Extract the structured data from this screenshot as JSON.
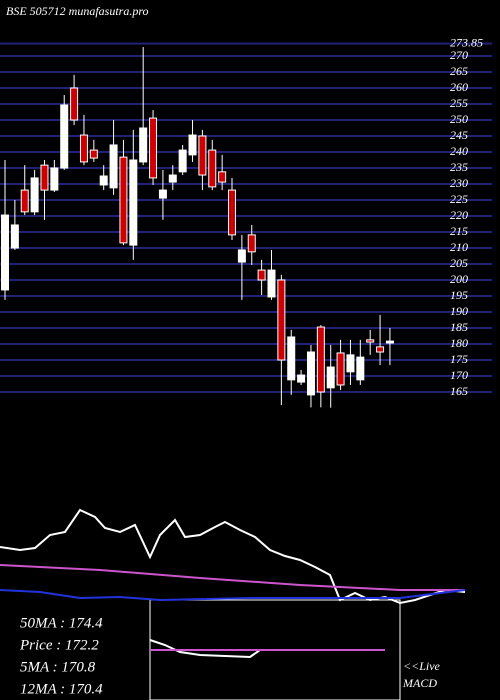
{
  "chart_data": [
    {
      "type": "candlestick",
      "title": "BSE 505712 munafasutra.pro",
      "up_color": "#ffffff",
      "down_color": "#cc0000",
      "grid": true,
      "grid_color": "#22227a",
      "ylim": [
        160,
        275
      ],
      "yticks": [
        165,
        170,
        175,
        180,
        185,
        190,
        195,
        200,
        205,
        210,
        215,
        220,
        225,
        230,
        235,
        240,
        245,
        250,
        255,
        260,
        265,
        270,
        273.85
      ],
      "open": [
        196.9,
        210,
        228.1,
        221.3,
        235.9,
        228.1,
        235,
        260,
        245.3,
        240.6,
        229.7,
        228.8,
        238.4,
        210.9,
        236.9,
        250.6,
        225.6,
        230.6,
        233.8,
        239.1,
        245,
        240.6,
        233.8,
        228.1,
        205.6,
        214.1,
        203.1,
        194.7,
        200,
        168.8,
        168.1,
        164.1,
        185.3,
        166.3,
        177.2,
        171.3,
        168.8,
        181.3,
        179.1,
        180.3
      ],
      "high": [
        237.5,
        225,
        235.9,
        234.4,
        237.5,
        237.5,
        257.8,
        264.1,
        251.6,
        243.8,
        235.9,
        250,
        243.8,
        246.9,
        272.8,
        253.1,
        234.4,
        235.9,
        242.2,
        250,
        246.9,
        243.8,
        239.1,
        231.9,
        214.1,
        217.2,
        206.3,
        209.4,
        201.6,
        184.4,
        171.9,
        179.7,
        185.9,
        179.7,
        181.3,
        181.3,
        181.3,
        184.4,
        189.1,
        185
      ],
      "low": [
        193.8,
        209.4,
        220.3,
        220.3,
        218.8,
        227.5,
        234.4,
        248.4,
        235.9,
        236.9,
        228.1,
        226.6,
        210.9,
        206.3,
        235.9,
        229.7,
        218.8,
        228.1,
        232.8,
        236.9,
        228.1,
        228.1,
        228.1,
        212.5,
        193.8,
        204.7,
        195.3,
        193.8,
        160.9,
        164.1,
        167.2,
        160.2,
        160.2,
        160.1,
        165.6,
        167.2,
        167.2,
        176.6,
        173.4,
        173.4
      ],
      "close": [
        220.3,
        217.2,
        221.3,
        231.9,
        228.1,
        235,
        254.7,
        250,
        236.9,
        238.1,
        232.5,
        242.2,
        211.6,
        237.5,
        247.5,
        231.9,
        228.1,
        232.8,
        240.6,
        245.3,
        232.8,
        229.1,
        230.6,
        214.1,
        209.4,
        208.8,
        200,
        203.1,
        175,
        182.2,
        170.3,
        177.5,
        165,
        172.8,
        167.2,
        176.6,
        175.9,
        180.6,
        177.5,
        180.9
      ]
    },
    {
      "type": "line",
      "xlim": [
        0,
        465
      ],
      "ylim": [
        -10,
        100
      ],
      "stats": [
        "50MA : 174.4",
        "Price : 172.2",
        "5MA : 170.8",
        "12MA : 170.4"
      ],
      "series": [
        {
          "color": "#ffffff",
          "x": [
            0,
            20,
            35,
            50,
            65,
            80,
            95,
            105,
            120,
            135,
            150,
            160,
            175,
            185,
            200,
            215,
            225,
            240,
            255,
            270,
            285,
            300,
            315,
            330,
            340,
            355,
            370,
            385,
            400,
            415,
            430,
            445,
            465
          ],
          "values": [
            53,
            50,
            52,
            65,
            68,
            90,
            83,
            72,
            68,
            75,
            43,
            65,
            80,
            63,
            65,
            73,
            78,
            70,
            63,
            50,
            44,
            40,
            33,
            25,
            0,
            7,
            0,
            3,
            -3,
            0,
            5,
            10,
            8
          ]
        },
        {
          "color": "#cc55cc",
          "x": [
            0,
            100,
            200,
            300,
            400,
            465
          ],
          "values": [
            35,
            30,
            22,
            15,
            10,
            10
          ]
        },
        {
          "color": "#2233dd",
          "x": [
            0,
            40,
            80,
            120,
            160,
            250,
            400,
            465
          ],
          "values": [
            10,
            8,
            2,
            3,
            0,
            2,
            2,
            10
          ]
        }
      ]
    },
    {
      "type": "line",
      "title": "MACD",
      "note": "<<Live",
      "xlim": [
        0,
        250
      ],
      "ylim": [
        0,
        100
      ],
      "series": [
        {
          "color": "#ffffff",
          "x": [
            0,
            15,
            30,
            50,
            100,
            110,
            235
          ],
          "values": [
            60,
            55,
            48,
            45,
            43,
            50,
            50
          ]
        },
        {
          "color": "#cc55cc",
          "x": [
            0,
            235
          ],
          "values": [
            50,
            50
          ]
        }
      ]
    }
  ]
}
